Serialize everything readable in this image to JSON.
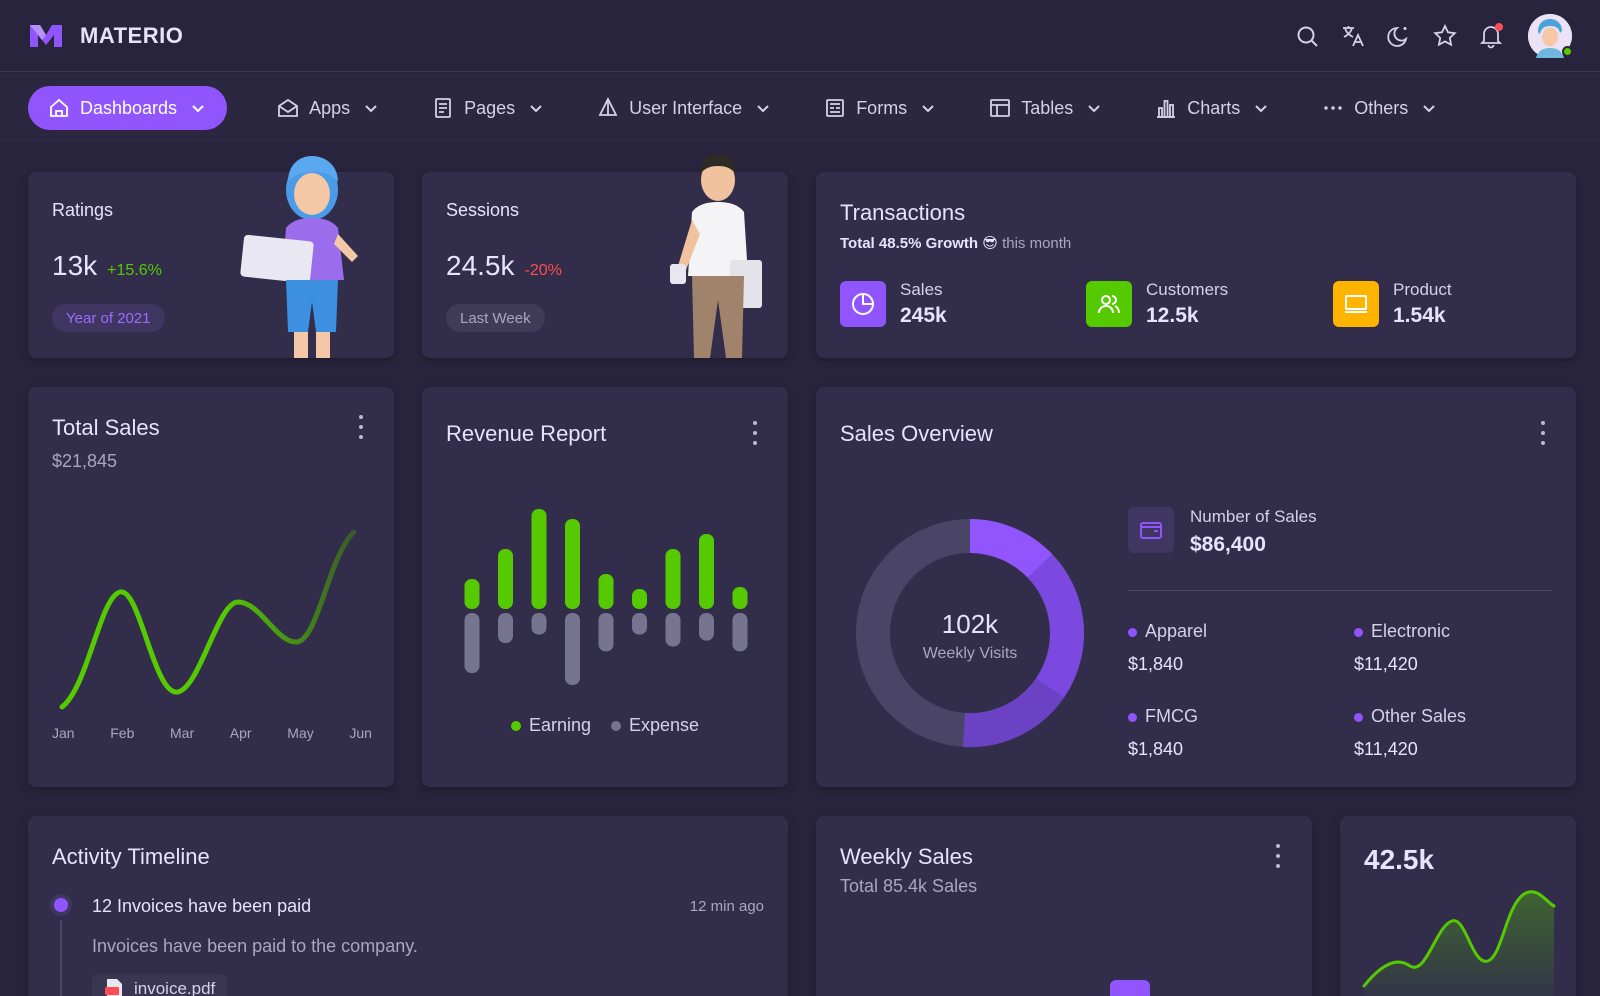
{
  "app": {
    "brand": "MATERIO"
  },
  "topbar": {
    "icons": [
      "search-icon",
      "translate-icon",
      "theme-moon-icon",
      "star-icon",
      "bell-icon"
    ]
  },
  "nav": {
    "items": [
      {
        "label": "Dashboards",
        "icon": "home-icon",
        "active": true
      },
      {
        "label": "Apps",
        "icon": "mail-open-icon"
      },
      {
        "label": "Pages",
        "icon": "document-icon"
      },
      {
        "label": "User Interface",
        "icon": "shapes-icon"
      },
      {
        "label": "Forms",
        "icon": "form-icon"
      },
      {
        "label": "Tables",
        "icon": "table-icon"
      },
      {
        "label": "Charts",
        "icon": "bar-chart-icon"
      },
      {
        "label": "Others",
        "icon": "dots-icon"
      }
    ]
  },
  "ratings": {
    "title": "Ratings",
    "value": "13k",
    "change": "+15.6%",
    "chip": "Year of 2021"
  },
  "sessions": {
    "title": "Sessions",
    "value": "24.5k",
    "change": "-20%",
    "chip": "Last Week"
  },
  "transactions": {
    "title": "Transactions",
    "subtitle_bold": "Total 48.5% Growth",
    "subtitle_emoji": "😎",
    "subtitle_rest": "this month",
    "items": [
      {
        "label": "Sales",
        "value": "245k",
        "color": "#9155fd",
        "icon": "pie-chart-icon"
      },
      {
        "label": "Customers",
        "value": "12.5k",
        "color": "#56ca00",
        "icon": "users-icon"
      },
      {
        "label": "Product",
        "value": "1.54k",
        "color": "#ffb400",
        "icon": "monitor-icon"
      }
    ]
  },
  "total_sales": {
    "title": "Total Sales",
    "amount": "$21,845",
    "months": [
      "Jan",
      "Feb",
      "Mar",
      "Apr",
      "May",
      "Jun"
    ]
  },
  "revenue_report": {
    "title": "Revenue Report",
    "legend": {
      "earning": "Earning",
      "expense": "Expense"
    },
    "colors": {
      "earning": "#56ca00",
      "expense": "#777490"
    }
  },
  "sales_overview": {
    "title": "Sales Overview",
    "donut_value": "102k",
    "donut_label": "Weekly Visits",
    "number_label": "Number of Sales",
    "number_value": "$86,400",
    "categories": [
      {
        "label": "Apparel",
        "value": "$1,840"
      },
      {
        "label": "Electronic",
        "value": "$11,420"
      },
      {
        "label": "FMCG",
        "value": "$1,840"
      },
      {
        "label": "Other Sales",
        "value": "$11,420"
      }
    ]
  },
  "activity": {
    "title": "Activity Timeline",
    "item_title": "12 Invoices have been paid",
    "item_time": "12 min ago",
    "item_desc": "Invoices have been paid to the company.",
    "attachment": "invoice.pdf"
  },
  "weekly_sales": {
    "title": "Weekly Sales",
    "subtitle": "Total 85.4k Sales"
  },
  "mini_stat": {
    "value": "42.5k"
  },
  "chart_data": [
    {
      "type": "bar",
      "title": "Revenue Report",
      "series": [
        {
          "name": "Earning",
          "values": [
            30,
            60,
            100,
            90,
            35,
            20,
            60,
            75,
            22
          ]
        },
        {
          "name": "Expense",
          "values": [
            50,
            25,
            18,
            60,
            32,
            18,
            28,
            23,
            32
          ]
        }
      ]
    }
  ]
}
